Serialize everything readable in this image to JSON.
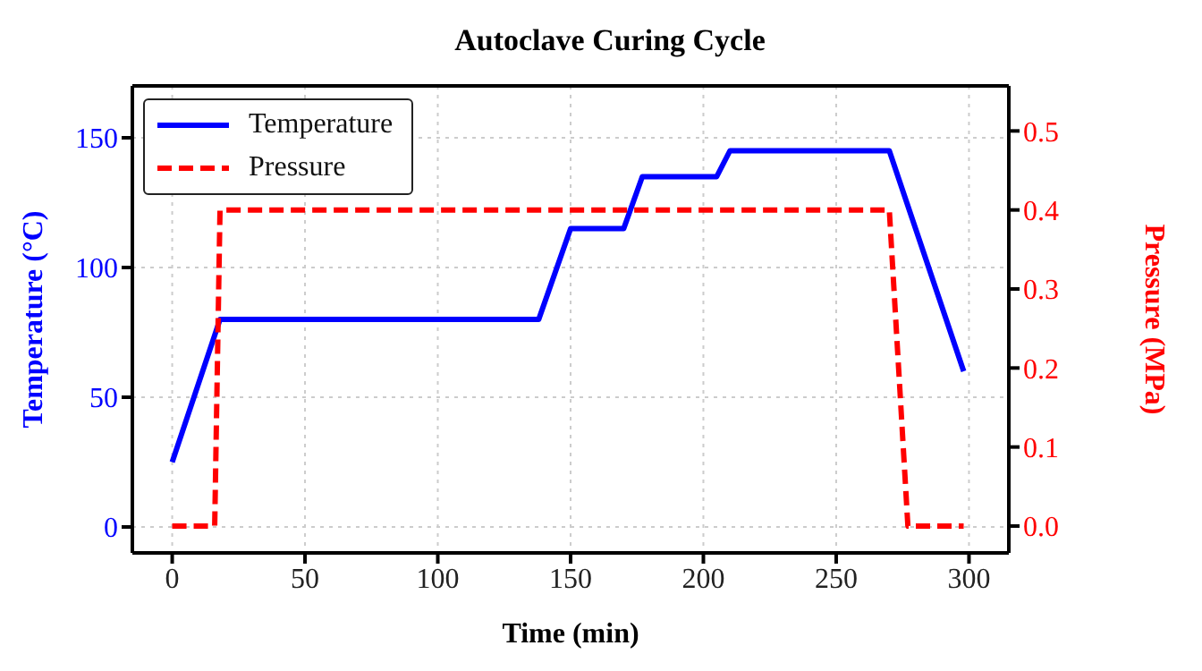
{
  "chart_data": {
    "type": "line",
    "title": "Autoclave Curing Cycle",
    "xlabel": "Time (min)",
    "ylabel": "Temperature (°C)",
    "y2label": "Pressure (MPa)",
    "xlim": [
      -15,
      315
    ],
    "xticks": [
      0,
      50,
      100,
      150,
      200,
      250,
      300
    ],
    "ylim": [
      -10,
      170
    ],
    "yticks": [
      0,
      50,
      100,
      150
    ],
    "y2lim": [
      -0.034,
      0.557
    ],
    "y2ticks": [
      {
        "value": 0,
        "label": "0.0"
      },
      0.1,
      0.2,
      0.3,
      0.4,
      0.5
    ],
    "grid": true,
    "legend": "top left",
    "series": [
      {
        "name": "Temperature",
        "color": "#0000ff",
        "line_style": "solid",
        "x": [
          0,
          18,
          138,
          150,
          170,
          177,
          205,
          210,
          270,
          298
        ],
        "values": [
          25,
          80,
          80,
          115,
          115,
          135,
          135,
          145,
          145,
          60
        ]
      },
      {
        "name": "Pressure",
        "color": "#ff0000",
        "line_style": "dashed",
        "axis": "y2",
        "x": [
          0,
          16,
          18,
          270,
          277,
          298
        ],
        "values": [
          0,
          0,
          0.4,
          0.4,
          0,
          0
        ]
      }
    ]
  }
}
